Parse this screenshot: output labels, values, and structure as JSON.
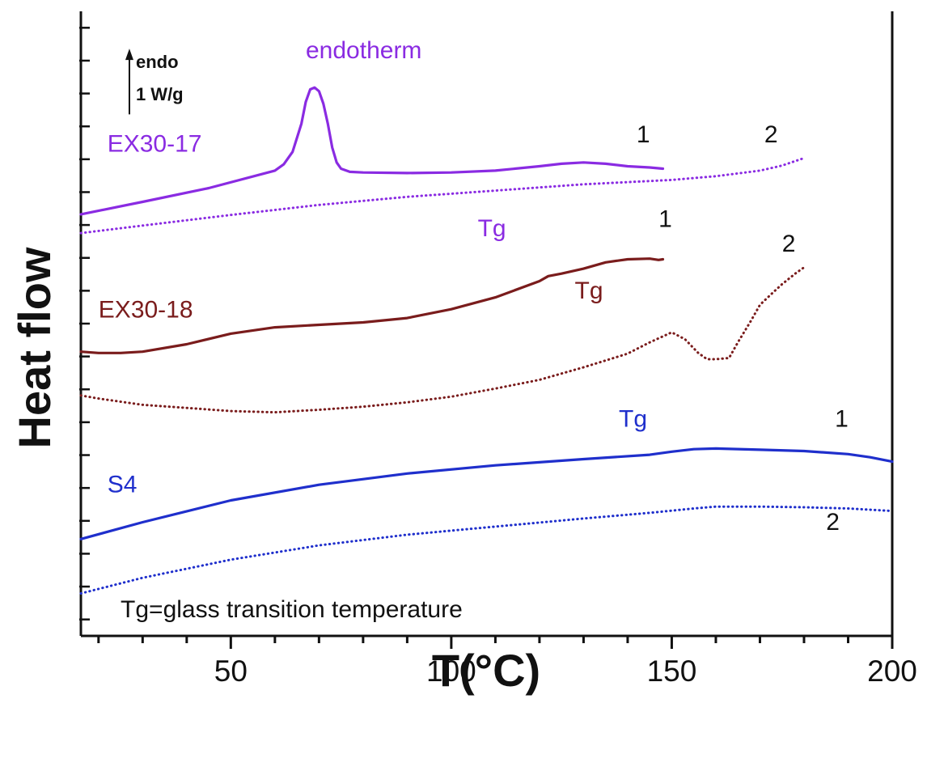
{
  "chart_data": {
    "type": "line",
    "title": "",
    "xlabel": "T(°C)",
    "ylabel": "Heat flow",
    "xlim": [
      16,
      200
    ],
    "ylim": [
      0,
      100
    ],
    "xticks": [
      50,
      100,
      150,
      200
    ],
    "y_tick_count": 19,
    "grid": false,
    "scale_bar": {
      "direction": "endo",
      "label_top": "endo",
      "label_bottom": "1 W/g",
      "length": 10
    },
    "colors": {
      "EX30-17": "#8a2be2",
      "EX30-18": "#7a1c1c",
      "S4": "#1f2fcc",
      "axis": "#111111"
    },
    "series": [
      {
        "name": "EX30-17 run 1",
        "sample": "EX30-17",
        "run": "1",
        "style": "solid",
        "x": [
          16,
          30,
          45,
          60,
          62,
          64,
          66,
          67,
          68,
          69,
          70,
          71,
          72,
          73,
          74,
          75,
          77,
          80,
          90,
          100,
          110,
          120,
          125,
          130,
          135,
          140,
          145,
          148
        ],
        "y": [
          67.5,
          69.5,
          71.7,
          74.5,
          75.5,
          77.5,
          82.0,
          85.5,
          87.5,
          87.8,
          87.2,
          85.2,
          82.0,
          78.2,
          75.8,
          74.8,
          74.3,
          74.2,
          74.1,
          74.2,
          74.5,
          75.2,
          75.6,
          75.8,
          75.6,
          75.2,
          75.0,
          74.8
        ]
      },
      {
        "name": "EX30-17 run 2",
        "sample": "EX30-17",
        "run": "2",
        "style": "dotted",
        "x": [
          16,
          30,
          50,
          70,
          90,
          110,
          130,
          150,
          160,
          170,
          175,
          180
        ],
        "y": [
          64.5,
          65.7,
          67.4,
          69.0,
          70.3,
          71.3,
          72.3,
          73.0,
          73.6,
          74.5,
          75.3,
          76.5
        ]
      },
      {
        "name": "EX30-18 run 1",
        "sample": "EX30-18",
        "run": "1",
        "style": "solid",
        "x": [
          16,
          20,
          25,
          30,
          40,
          50,
          60,
          70,
          80,
          90,
          100,
          110,
          120,
          122,
          125,
          130,
          135,
          140,
          145,
          147,
          148
        ],
        "y": [
          45.5,
          45.3,
          45.3,
          45.5,
          46.7,
          48.4,
          49.4,
          49.8,
          50.2,
          50.9,
          52.3,
          54.2,
          56.8,
          57.6,
          58.0,
          58.8,
          59.8,
          60.3,
          60.4,
          60.2,
          60.3
        ]
      },
      {
        "name": "EX30-18 run 2",
        "sample": "EX30-18",
        "run": "2",
        "style": "dotted",
        "x": [
          16,
          20,
          30,
          40,
          50,
          60,
          70,
          80,
          90,
          100,
          110,
          120,
          130,
          140,
          145,
          150,
          153,
          156,
          158,
          160,
          163,
          165,
          168,
          170,
          173,
          175,
          178,
          180
        ],
        "y": [
          38.5,
          38.0,
          37.0,
          36.5,
          36.0,
          35.8,
          36.2,
          36.7,
          37.4,
          38.3,
          39.6,
          41.0,
          43.0,
          45.2,
          47.0,
          48.6,
          47.5,
          45.3,
          44.3,
          44.3,
          44.5,
          47.0,
          50.5,
          53.0,
          55.0,
          56.3,
          58.0,
          59.0
        ]
      },
      {
        "name": "S4 run 1",
        "sample": "S4",
        "run": "1",
        "style": "solid",
        "x": [
          16,
          30,
          50,
          70,
          90,
          110,
          130,
          145,
          150,
          155,
          160,
          170,
          180,
          190,
          195,
          200
        ],
        "y": [
          15.5,
          18.2,
          21.7,
          24.2,
          26.0,
          27.3,
          28.3,
          29.0,
          29.5,
          29.9,
          30.0,
          29.8,
          29.6,
          29.1,
          28.6,
          27.9
        ]
      },
      {
        "name": "S4 run 2",
        "sample": "S4",
        "run": "2",
        "style": "dotted",
        "x": [
          16,
          30,
          50,
          70,
          90,
          110,
          130,
          145,
          155,
          160,
          170,
          180,
          190,
          200
        ],
        "y": [
          6.8,
          9.3,
          12.2,
          14.5,
          16.2,
          17.5,
          18.8,
          19.7,
          20.4,
          20.7,
          20.7,
          20.6,
          20.4,
          20.0
        ]
      }
    ],
    "annotations": [
      {
        "id": "endotherm",
        "text": "endotherm",
        "x": 67,
        "y": 92.5,
        "color": "#8a2be2"
      },
      {
        "id": "label-ex30-17",
        "text": "EX30-17",
        "x": 22,
        "y": 77.5,
        "color": "#8a2be2"
      },
      {
        "id": "tg-ex30-17",
        "text": "Tg",
        "x": 106,
        "y": 64.0,
        "color": "#8a2be2"
      },
      {
        "id": "run1-ex30-17",
        "text": "1",
        "x": 142,
        "y": 79.0,
        "color": "#111111"
      },
      {
        "id": "run2-ex30-17",
        "text": "2",
        "x": 171,
        "y": 79.0,
        "color": "#111111"
      },
      {
        "id": "label-ex30-18",
        "text": "EX30-18",
        "x": 20,
        "y": 51.0,
        "color": "#7a1c1c"
      },
      {
        "id": "tg-ex30-18",
        "text": "Tg",
        "x": 128,
        "y": 54.0,
        "color": "#7a1c1c"
      },
      {
        "id": "run1-ex30-18",
        "text": "1",
        "x": 147,
        "y": 65.5,
        "color": "#111111"
      },
      {
        "id": "run2-ex30-18",
        "text": "2",
        "x": 175,
        "y": 61.5,
        "color": "#111111"
      },
      {
        "id": "label-s4",
        "text": "S4",
        "x": 22,
        "y": 23.0,
        "color": "#1f2fcc"
      },
      {
        "id": "tg-s4",
        "text": "Tg",
        "x": 138,
        "y": 33.5,
        "color": "#1f2fcc"
      },
      {
        "id": "run1-s4",
        "text": "1",
        "x": 187,
        "y": 33.5,
        "color": "#111111"
      },
      {
        "id": "run2-s4",
        "text": "2",
        "x": 185,
        "y": 17.0,
        "color": "#111111"
      },
      {
        "id": "note",
        "text": "Tg=glass transition temperature",
        "x": 25,
        "y": 3.0,
        "color": "#111111"
      }
    ]
  }
}
